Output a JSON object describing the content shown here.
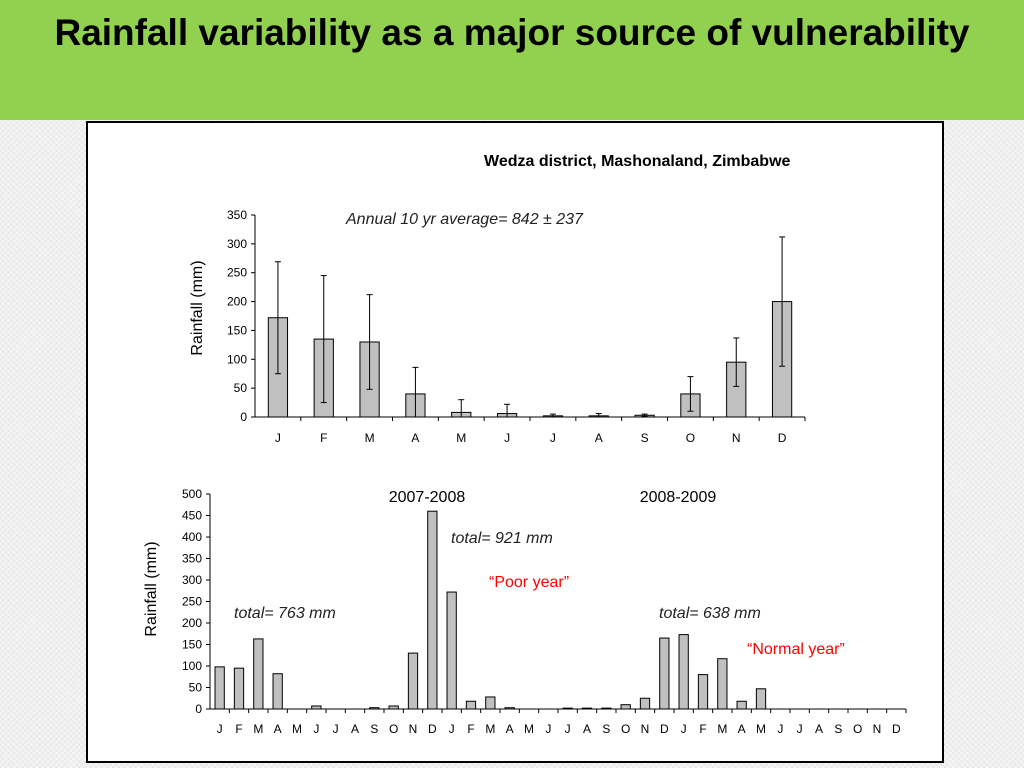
{
  "slide": {
    "title": "Rainfall variability as a major source of vulnerability",
    "accent_color": "#92d050"
  },
  "chart_data": [
    {
      "type": "bar",
      "title": "Wedza district, Mashonaland, Zimbabwe",
      "annotation": "Annual 10 yr average= 842 ± 237",
      "xlabel": "",
      "ylabel": "Rainfall (mm)",
      "ylim": [
        0,
        350
      ],
      "yticks": [
        0,
        50,
        100,
        150,
        200,
        250,
        300,
        350
      ],
      "categories": [
        "J",
        "F",
        "M",
        "A",
        "M",
        "J",
        "J",
        "A",
        "S",
        "O",
        "N",
        "D"
      ],
      "values": [
        172,
        135,
        130,
        40,
        8,
        6,
        2,
        2,
        3,
        40,
        95,
        200
      ],
      "error": [
        97,
        110,
        82,
        46,
        22,
        16,
        3,
        4,
        2,
        30,
        42,
        112
      ],
      "bar_color": "#c0c0c0",
      "grid": false
    },
    {
      "type": "bar",
      "xlabel": "",
      "ylabel": "Rainfall (mm)",
      "ylim": [
        0,
        500
      ],
      "yticks": [
        0,
        50,
        100,
        150,
        200,
        250,
        300,
        350,
        400,
        450,
        500
      ],
      "categories": [
        "J",
        "F",
        "M",
        "A",
        "M",
        "J",
        "J",
        "A",
        "S",
        "O",
        "N",
        "D",
        "J",
        "F",
        "M",
        "A",
        "M",
        "J",
        "J",
        "A",
        "S",
        "O",
        "N",
        "D",
        "J",
        "F",
        "M",
        "A",
        "M",
        "J",
        "J",
        "A",
        "S",
        "O",
        "N",
        "D"
      ],
      "values": [
        98,
        95,
        163,
        82,
        0,
        7,
        0,
        0,
        3,
        7,
        130,
        460,
        272,
        18,
        28,
        3,
        0,
        0,
        2,
        2,
        2,
        10,
        25,
        165,
        173,
        80,
        117,
        18,
        47,
        0,
        0,
        0,
        0,
        0,
        0,
        0
      ],
      "bar_color": "#c0c0c0",
      "grid": false,
      "season_labels": [
        "2007-2008",
        "2008-2009"
      ],
      "annotations": [
        {
          "text": "total= 763 mm",
          "style": "italic"
        },
        {
          "text": "total= 921 mm",
          "style": "italic"
        },
        {
          "text": "“Poor year”",
          "color": "#ff0000"
        },
        {
          "text": "total= 638 mm",
          "style": "italic"
        },
        {
          "text": "“Normal year”",
          "color": "#ff0000"
        }
      ]
    }
  ]
}
